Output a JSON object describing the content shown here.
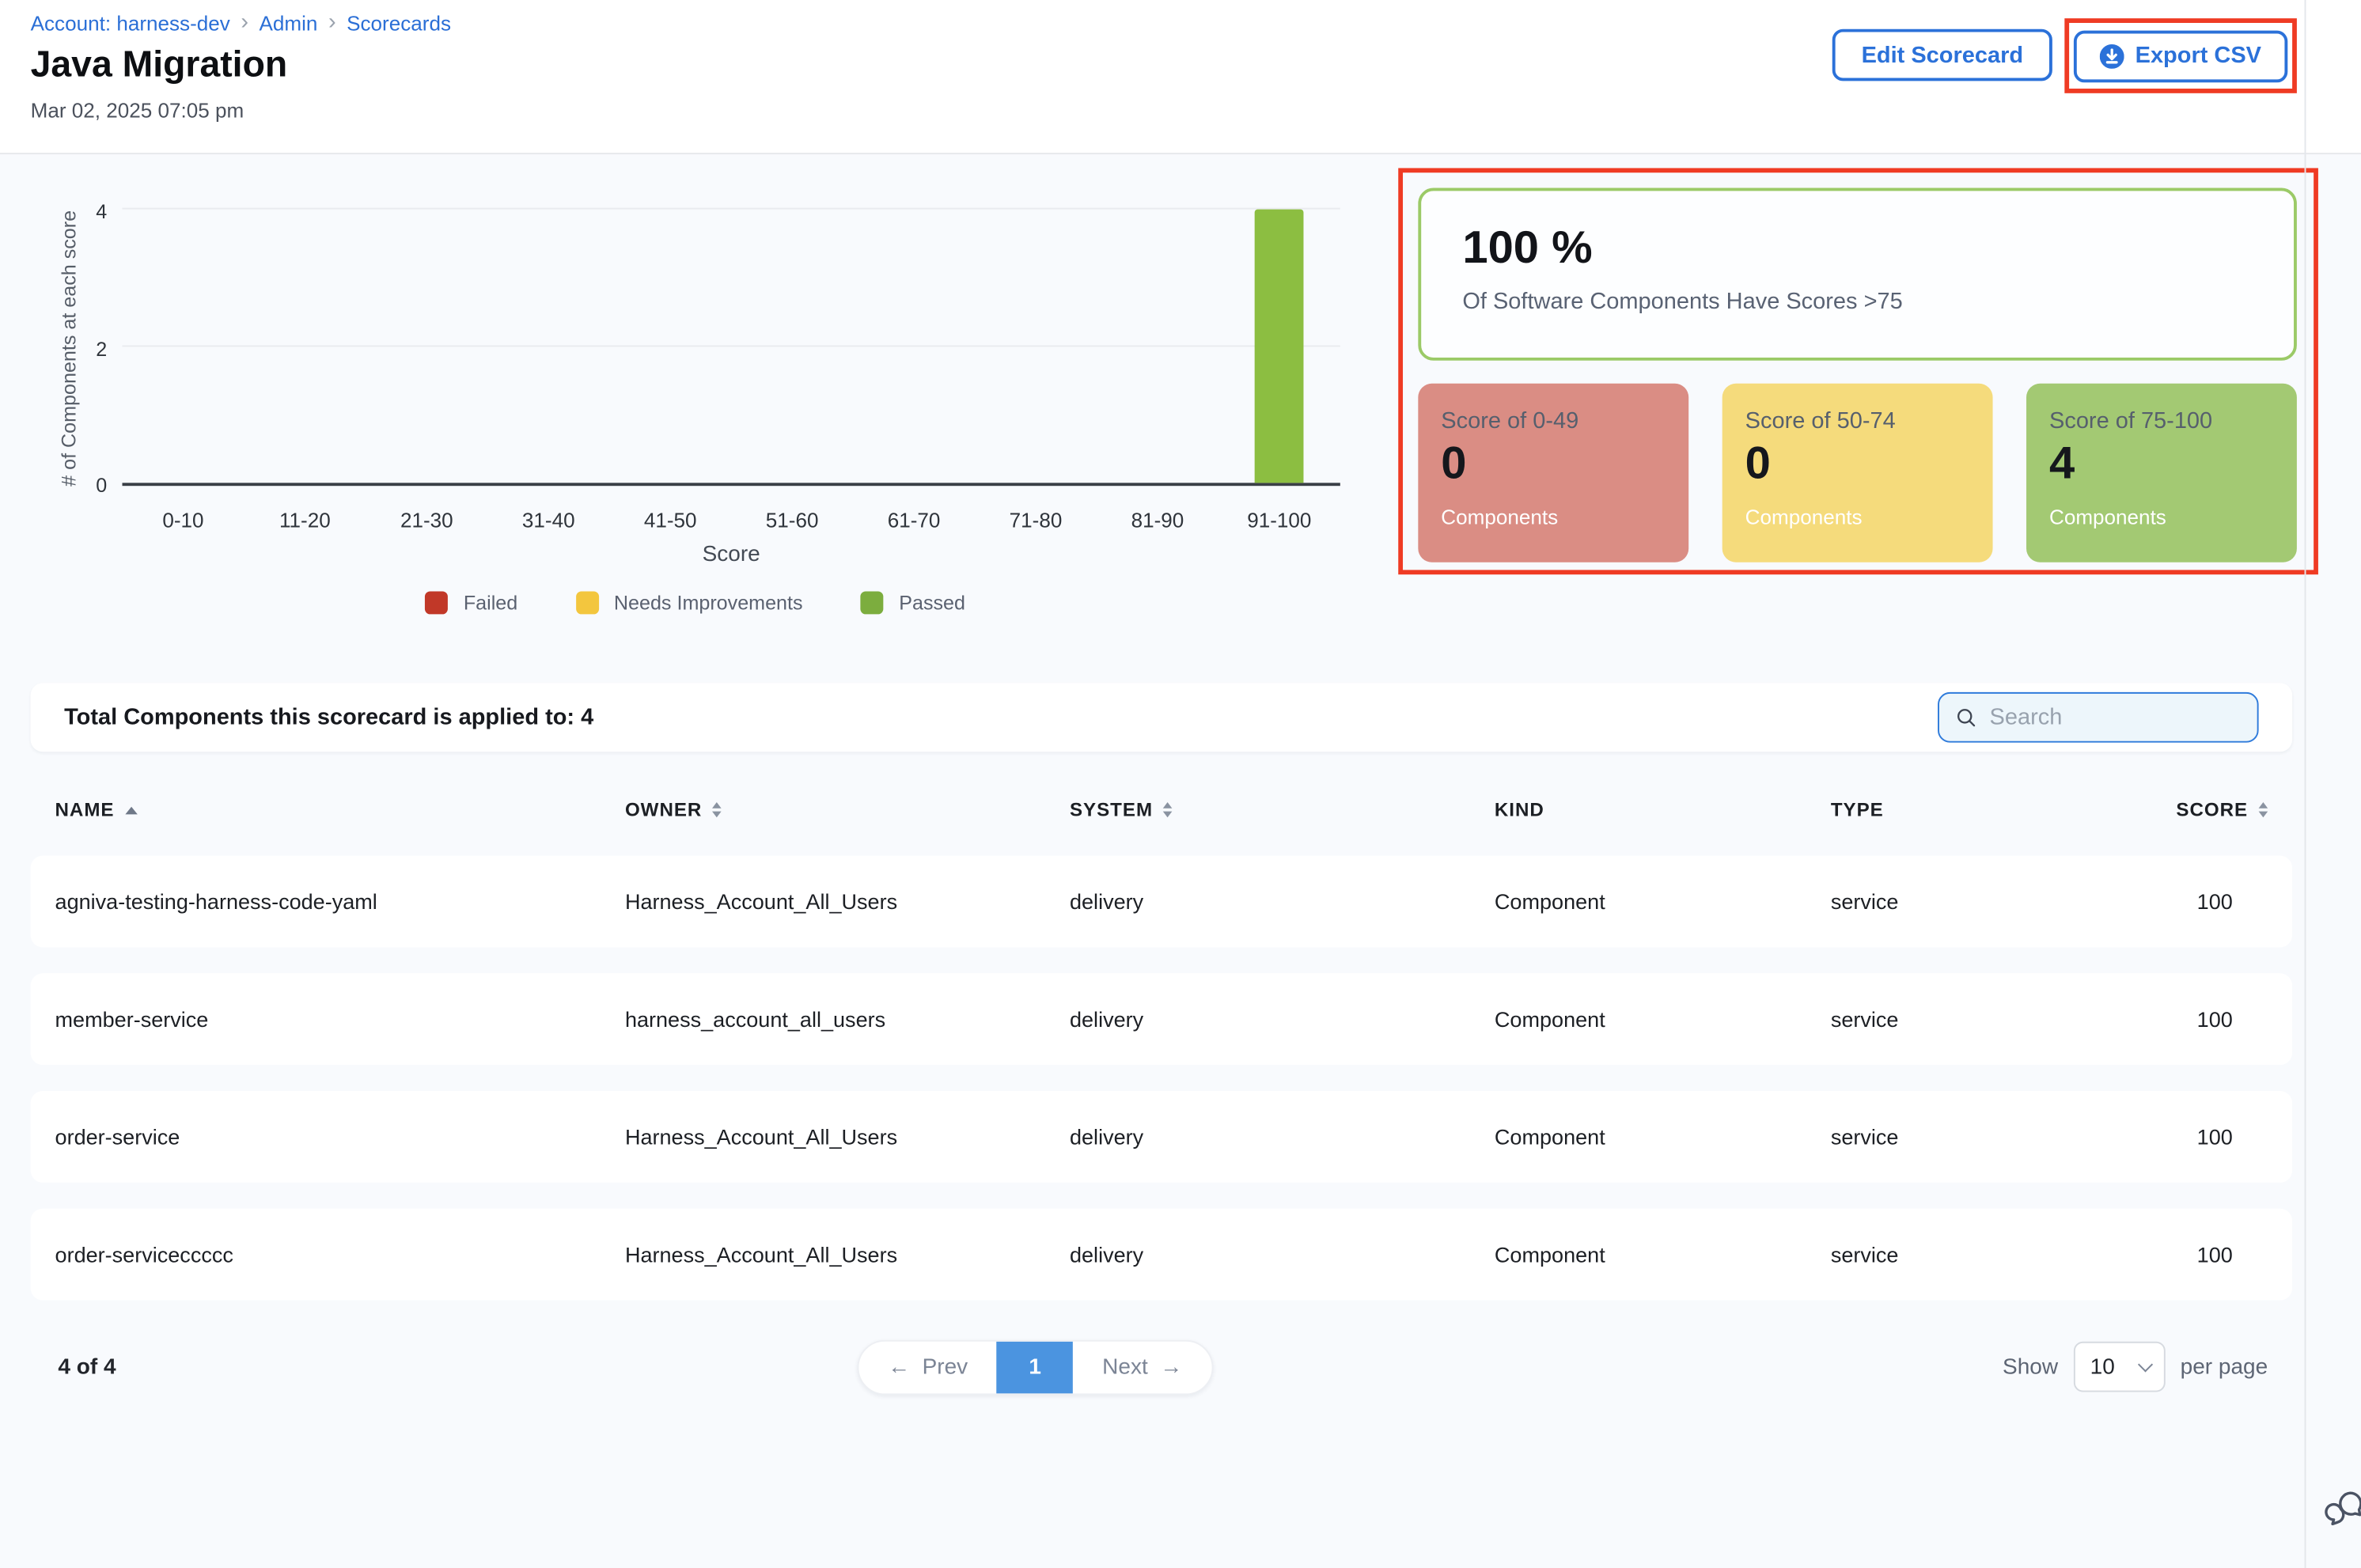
{
  "breadcrumb": {
    "separator": "›",
    "items": [
      "Account: harness-dev",
      "Admin",
      "Scorecards"
    ]
  },
  "header": {
    "title": "Java Migration",
    "date": "Mar 02, 2025 07:05 pm",
    "edit_button": "Edit Scorecard",
    "export_button": "Export CSV"
  },
  "chart_data": {
    "type": "bar",
    "title": "",
    "categories": [
      "0-10",
      "11-20",
      "21-30",
      "31-40",
      "41-50",
      "51-60",
      "61-70",
      "71-80",
      "81-90",
      "91-100"
    ],
    "values": [
      0,
      0,
      0,
      0,
      0,
      0,
      0,
      0,
      0,
      4
    ],
    "xlabel": "Score",
    "ylabel": "# of Components at each score",
    "yticks": [
      0,
      2,
      4
    ],
    "ylim": [
      0,
      4
    ],
    "bar_color": "#8cbe41",
    "grid": "horizontal",
    "legend_position": "bottom",
    "legend": [
      {
        "label": "Failed",
        "color": "#c13828"
      },
      {
        "label": "Needs Improvements",
        "color": "#f3c63e"
      },
      {
        "label": "Passed",
        "color": "#7cad3e"
      }
    ]
  },
  "summary": {
    "percent": "100 %",
    "percent_caption": "Of Software Components Have Scores >75",
    "cards": [
      {
        "label": "Score of 0-49",
        "value": "0",
        "caption": "Components",
        "color": "#da8d84"
      },
      {
        "label": "Score of 50-74",
        "value": "0",
        "caption": "Components",
        "color": "#f5db7c"
      },
      {
        "label": "Score of 75-100",
        "value": "4",
        "caption": "Components",
        "color": "#a3c973"
      }
    ]
  },
  "table": {
    "total_label": "Total Components this scorecard is applied to: 4",
    "search_placeholder": "Search",
    "columns": [
      {
        "label": "NAME",
        "sort": "asc"
      },
      {
        "label": "OWNER",
        "sort": "both"
      },
      {
        "label": "SYSTEM",
        "sort": "both"
      },
      {
        "label": "KIND",
        "sort": "none"
      },
      {
        "label": "TYPE",
        "sort": "none"
      },
      {
        "label": "SCORE",
        "sort": "both"
      }
    ],
    "rows": [
      {
        "name": "agniva-testing-harness-code-yaml",
        "owner": "Harness_Account_All_Users",
        "system": "delivery",
        "kind": "Component",
        "type": "service",
        "score": "100"
      },
      {
        "name": "member-service",
        "owner": "harness_account_all_users",
        "system": "delivery",
        "kind": "Component",
        "type": "service",
        "score": "100"
      },
      {
        "name": "order-service",
        "owner": "Harness_Account_All_Users",
        "system": "delivery",
        "kind": "Component",
        "type": "service",
        "score": "100"
      },
      {
        "name": "order-serviceccccc",
        "owner": "Harness_Account_All_Users",
        "system": "delivery",
        "kind": "Component",
        "type": "service",
        "score": "100"
      }
    ]
  },
  "pagination": {
    "count": "4 of 4",
    "prev": "Prev",
    "page": "1",
    "next": "Next",
    "show": "Show",
    "page_size": "10",
    "per_page": "per page",
    "prev_arrow": "←",
    "next_arrow": "→"
  },
  "colors": {
    "accent_blue": "#2b71d9",
    "annotation_red": "#ef3b24",
    "pagination_blue": "#4b94e0",
    "percent_card_border_green": "#9bca67"
  }
}
